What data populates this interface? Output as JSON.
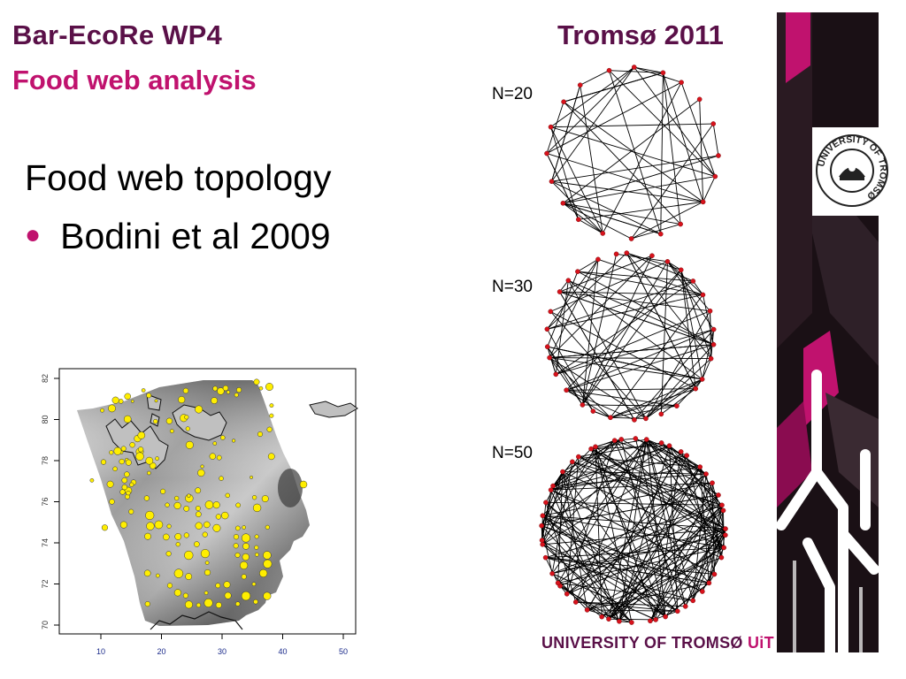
{
  "header": {
    "title_line1": "Bar-EcoRe WP4",
    "title_line2": "Food web analysis",
    "event": "Tromsø 2011"
  },
  "content": {
    "heading": "Food web topology",
    "bullets": [
      "Bodini et al 2009"
    ]
  },
  "networks": [
    {
      "label": "N=20",
      "nodes": 20
    },
    {
      "label": "N=30",
      "nodes": 30
    },
    {
      "label": "N=50",
      "nodes": 50
    }
  ],
  "map": {
    "y_ticks": [
      "82",
      "80",
      "78",
      "76",
      "74",
      "72",
      "70"
    ],
    "x_ticks": [
      "10",
      "20",
      "30",
      "40",
      "50"
    ]
  },
  "branding": {
    "seal_text": "UNIVERSITY OF TROMSØ",
    "footer_main": "UNIVERSITY OF TROMSØ",
    "footer_accent": "UiT"
  },
  "colors": {
    "title_dark": "#5a1048",
    "title_accent": "#c0126e",
    "node_red": "#d8121c",
    "station_yellow": "#ffee00"
  }
}
